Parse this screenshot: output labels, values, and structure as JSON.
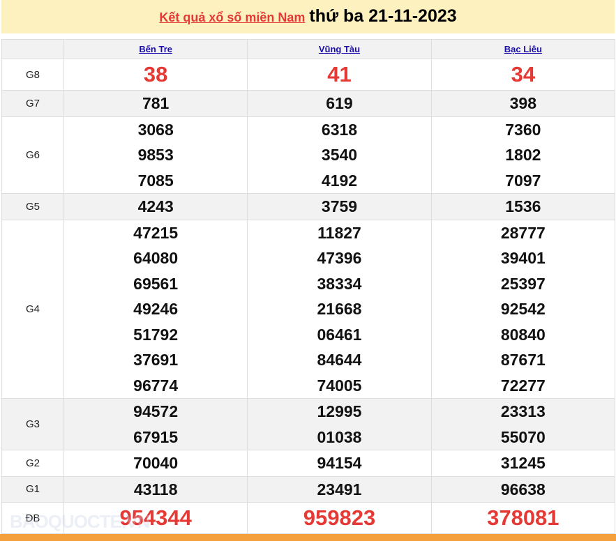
{
  "header": {
    "link": "Kết quả xổ số miền Nam",
    "date": "thứ ba 21-11-2023"
  },
  "provinces": [
    "Bến Tre",
    "Vũng Tàu",
    "Bạc Liêu"
  ],
  "rows": [
    {
      "label": "G8",
      "values": [
        [
          "38"
        ],
        [
          "41"
        ],
        [
          "34"
        ]
      ],
      "red": true
    },
    {
      "label": "G7",
      "values": [
        [
          "781"
        ],
        [
          "619"
        ],
        [
          "398"
        ]
      ]
    },
    {
      "label": "G6",
      "values": [
        [
          "3068",
          "9853",
          "7085"
        ],
        [
          "6318",
          "3540",
          "4192"
        ],
        [
          "7360",
          "1802",
          "7097"
        ]
      ]
    },
    {
      "label": "G5",
      "values": [
        [
          "4243"
        ],
        [
          "3759"
        ],
        [
          "1536"
        ]
      ]
    },
    {
      "label": "G4",
      "values": [
        [
          "47215",
          "64080",
          "69561",
          "49246",
          "51792",
          "37691",
          "96774"
        ],
        [
          "11827",
          "47396",
          "38334",
          "21668",
          "06461",
          "84644",
          "74005"
        ],
        [
          "28777",
          "39401",
          "25397",
          "92542",
          "80840",
          "87671",
          "72277"
        ]
      ]
    },
    {
      "label": "G3",
      "values": [
        [
          "94572",
          "67915"
        ],
        [
          "12995",
          "01038"
        ],
        [
          "23313",
          "55070"
        ]
      ]
    },
    {
      "label": "G2",
      "values": [
        [
          "70040"
        ],
        [
          "94154"
        ],
        [
          "31245"
        ]
      ]
    },
    {
      "label": "G1",
      "values": [
        [
          "43118"
        ],
        [
          "23491"
        ],
        [
          "96638"
        ]
      ]
    },
    {
      "label": "ĐB",
      "values": [
        [
          "954344"
        ],
        [
          "959823"
        ],
        [
          "378081"
        ]
      ],
      "red": true
    }
  ],
  "watermark": "BAOQUOCTE.VN"
}
